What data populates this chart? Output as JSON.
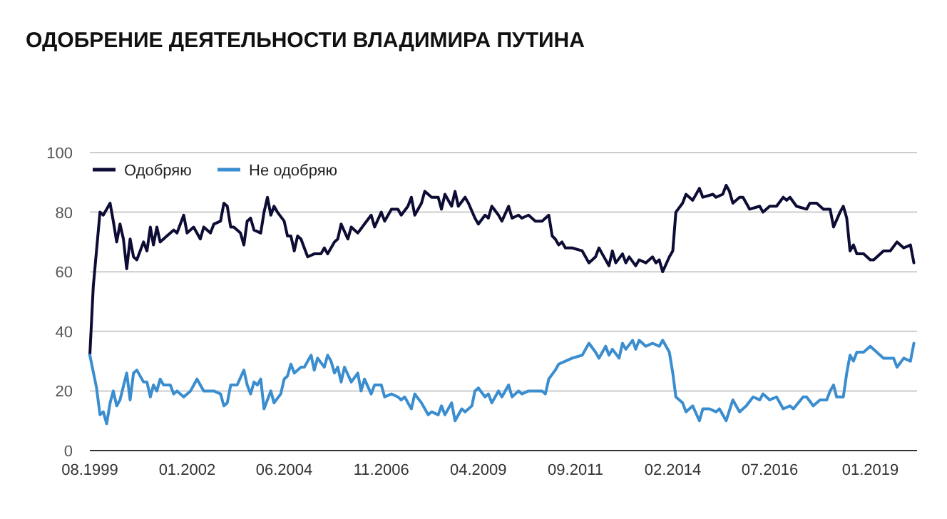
{
  "chart_data": {
    "type": "line",
    "title": "ОДОБРЕНИЕ ДЕЯТЕЛЬНОСТИ ВЛАДИМИРА ПУТИНА",
    "xlim": [
      "1999-08",
      "2020-03"
    ],
    "xticks": [
      {
        "value": "1999-08",
        "label": "08.1999"
      },
      {
        "value": "2002-01",
        "label": "01.2002"
      },
      {
        "value": "2004-06",
        "label": "06.2004"
      },
      {
        "value": "2006-11",
        "label": "11.2006"
      },
      {
        "value": "2009-04",
        "label": "04.2009"
      },
      {
        "value": "2011-09",
        "label": "09.2011"
      },
      {
        "value": "2014-02",
        "label": "02.2014"
      },
      {
        "value": "2016-07",
        "label": "07.2016"
      },
      {
        "value": "2019-01",
        "label": "01.2019"
      }
    ],
    "ylim": [
      0,
      100
    ],
    "yticks": [
      0,
      20,
      40,
      60,
      80,
      100
    ],
    "grid": "y",
    "legend": "top left",
    "marker": "none",
    "line_style": "solid",
    "series": [
      {
        "name": "Одобряю",
        "color": "#0c0c35",
        "x": [
          "1999-08",
          "1999-09",
          "1999-11",
          "1999-12",
          "2000-02",
          "2000-03",
          "2000-04",
          "2000-05",
          "2000-06",
          "2000-07",
          "2000-08",
          "2000-09",
          "2000-10",
          "2000-12",
          "2001-01",
          "2001-02",
          "2001-03",
          "2001-04",
          "2001-05",
          "2001-07",
          "2001-09",
          "2001-10",
          "2001-12",
          "2002-01",
          "2002-03",
          "2002-05",
          "2002-06",
          "2002-08",
          "2002-09",
          "2002-11",
          "2002-12",
          "2003-01",
          "2003-02",
          "2003-03",
          "2003-05",
          "2003-06",
          "2003-07",
          "2003-08",
          "2003-09",
          "2003-11",
          "2003-12",
          "2004-01",
          "2004-02",
          "2004-03",
          "2004-04",
          "2004-06",
          "2004-07",
          "2004-08",
          "2004-09",
          "2004-10",
          "2004-11",
          "2004-12",
          "2005-01",
          "2005-03",
          "2005-05",
          "2005-06",
          "2005-07",
          "2005-09",
          "2005-10",
          "2005-11",
          "2006-01",
          "2006-02",
          "2006-04",
          "2006-06",
          "2006-08",
          "2006-09",
          "2006-11",
          "2006-12",
          "2007-02",
          "2007-04",
          "2007-05",
          "2007-07",
          "2007-08",
          "2007-09",
          "2007-11",
          "2007-12",
          "2008-02",
          "2008-04",
          "2008-05",
          "2008-06",
          "2008-08",
          "2008-09",
          "2008-10",
          "2008-12",
          "2009-01",
          "2009-03",
          "2009-04",
          "2009-06",
          "2009-07",
          "2009-08",
          "2009-10",
          "2009-11",
          "2010-01",
          "2010-02",
          "2010-04",
          "2010-05",
          "2010-07",
          "2010-09",
          "2010-11",
          "2011-01",
          "2011-02",
          "2011-03",
          "2011-04",
          "2011-05",
          "2011-06",
          "2011-08",
          "2011-11",
          "2012-01",
          "2012-03",
          "2012-04",
          "2012-05",
          "2012-07",
          "2012-08",
          "2012-09",
          "2012-11",
          "2012-12",
          "2013-01",
          "2013-03",
          "2013-04",
          "2013-06",
          "2013-08",
          "2013-09",
          "2013-10",
          "2013-11",
          "2014-01",
          "2014-02",
          "2014-03",
          "2014-05",
          "2014-06",
          "2014-08",
          "2014-10",
          "2014-11",
          "2015-02",
          "2015-03",
          "2015-05",
          "2015-06",
          "2015-07",
          "2015-08",
          "2015-10",
          "2015-11",
          "2016-01",
          "2016-04",
          "2016-05",
          "2016-07",
          "2016-09",
          "2016-11",
          "2016-12",
          "2017-01",
          "2017-03",
          "2017-06",
          "2017-07",
          "2017-09",
          "2017-11",
          "2018-01",
          "2018-02",
          "2018-04",
          "2018-05",
          "2018-06",
          "2018-07",
          "2018-08",
          "2018-09",
          "2018-11",
          "2019-01",
          "2019-02",
          "2019-05",
          "2019-07",
          "2019-09",
          "2019-11",
          "2020-01",
          "2020-02"
        ],
        "values": [
          32,
          55,
          80,
          79,
          83,
          77,
          70,
          76,
          71,
          61,
          71,
          65,
          64,
          70,
          67,
          75,
          69,
          75,
          70,
          72,
          74,
          73,
          79,
          73,
          75,
          71,
          75,
          73,
          76,
          77,
          83,
          82,
          75,
          75,
          73,
          69,
          77,
          78,
          74,
          73,
          80,
          85,
          79,
          82,
          80,
          77,
          72,
          72,
          67,
          72,
          71,
          68,
          65,
          66,
          66,
          68,
          66,
          70,
          71,
          76,
          71,
          75,
          73,
          76,
          79,
          75,
          80,
          77,
          81,
          81,
          79,
          82,
          85,
          79,
          83,
          87,
          85,
          85,
          81,
          86,
          82,
          87,
          82,
          85,
          83,
          78,
          76,
          79,
          78,
          82,
          79,
          77,
          82,
          78,
          79,
          78,
          79,
          77,
          77,
          79,
          72,
          71,
          69,
          70,
          68,
          68,
          67,
          63,
          65,
          68,
          66,
          62,
          67,
          63,
          66,
          63,
          65,
          62,
          64,
          63,
          65,
          63,
          64,
          60,
          65,
          67,
          80,
          83,
          86,
          84,
          88,
          85,
          86,
          85,
          86,
          89,
          87,
          83,
          85,
          85,
          81,
          82,
          80,
          82,
          82,
          85,
          84,
          85,
          82,
          81,
          83,
          83,
          81,
          81,
          75,
          80,
          82,
          78,
          67,
          69,
          66,
          66,
          64,
          64,
          67,
          67,
          70,
          68,
          69,
          63
        ]
      },
      {
        "name": "Не одобряю",
        "color": "#3a8dcf",
        "x": [
          "1999-08",
          "1999-10",
          "1999-11",
          "1999-12",
          "2000-01",
          "2000-02",
          "2000-03",
          "2000-04",
          "2000-05",
          "2000-07",
          "2000-08",
          "2000-09",
          "2000-10",
          "2000-12",
          "2001-01",
          "2001-02",
          "2001-03",
          "2001-04",
          "2001-05",
          "2001-06",
          "2001-08",
          "2001-09",
          "2001-10",
          "2001-12",
          "2002-02",
          "2002-04",
          "2002-06",
          "2002-09",
          "2002-11",
          "2002-12",
          "2003-01",
          "2003-02",
          "2003-04",
          "2003-06",
          "2003-07",
          "2003-08",
          "2003-09",
          "2003-10",
          "2003-11",
          "2003-12",
          "2004-02",
          "2004-03",
          "2004-05",
          "2004-06",
          "2004-07",
          "2004-08",
          "2004-09",
          "2004-11",
          "2004-12",
          "2005-02",
          "2005-03",
          "2005-04",
          "2005-06",
          "2005-07",
          "2005-08",
          "2005-09",
          "2005-10",
          "2005-11",
          "2005-12",
          "2006-02",
          "2006-04",
          "2006-05",
          "2006-06",
          "2006-08",
          "2006-09",
          "2006-11",
          "2006-12",
          "2007-02",
          "2007-04",
          "2007-05",
          "2007-06",
          "2007-08",
          "2007-09",
          "2007-11",
          "2008-01",
          "2008-02",
          "2008-04",
          "2008-05",
          "2008-06",
          "2008-08",
          "2008-09",
          "2008-11",
          "2008-12",
          "2009-02",
          "2009-03",
          "2009-04",
          "2009-06",
          "2009-07",
          "2009-08",
          "2009-10",
          "2009-11",
          "2010-01",
          "2010-02",
          "2010-04",
          "2010-05",
          "2010-07",
          "2010-09",
          "2010-11",
          "2010-12",
          "2011-01",
          "2011-03",
          "2011-04",
          "2011-06",
          "2011-08",
          "2011-11",
          "2012-01",
          "2012-03",
          "2012-04",
          "2012-06",
          "2012-07",
          "2012-08",
          "2012-10",
          "2012-11",
          "2012-12",
          "2013-02",
          "2013-03",
          "2013-04",
          "2013-06",
          "2013-08",
          "2013-10",
          "2013-11",
          "2014-01",
          "2014-02",
          "2014-03",
          "2014-05",
          "2014-06",
          "2014-08",
          "2014-10",
          "2014-11",
          "2015-01",
          "2015-03",
          "2015-04",
          "2015-06",
          "2015-08",
          "2015-10",
          "2015-12",
          "2016-02",
          "2016-04",
          "2016-05",
          "2016-07",
          "2016-09",
          "2016-11",
          "2017-01",
          "2017-02",
          "2017-05",
          "2017-06",
          "2017-08",
          "2017-10",
          "2017-12",
          "2018-01",
          "2018-02",
          "2018-03",
          "2018-05",
          "2018-06",
          "2018-07",
          "2018-08",
          "2018-09",
          "2018-11",
          "2019-01",
          "2019-03",
          "2019-05",
          "2019-08",
          "2019-09",
          "2019-11",
          "2020-01",
          "2020-02"
        ],
        "values": [
          32,
          21,
          12,
          13,
          9,
          16,
          20,
          15,
          17,
          26,
          17,
          26,
          27,
          23,
          23,
          18,
          22,
          20,
          24,
          22,
          22,
          19,
          20,
          18,
          20,
          24,
          20,
          20,
          19,
          15,
          16,
          22,
          22,
          27,
          22,
          19,
          23,
          22,
          24,
          14,
          20,
          16,
          19,
          24,
          25,
          29,
          26,
          28,
          28,
          32,
          27,
          31,
          28,
          32,
          30,
          26,
          28,
          23,
          28,
          23,
          26,
          20,
          24,
          19,
          22,
          22,
          18,
          19,
          18,
          17,
          18,
          14,
          19,
          16,
          12,
          13,
          12,
          15,
          12,
          16,
          10,
          14,
          13,
          15,
          20,
          21,
          18,
          19,
          16,
          20,
          18,
          22,
          18,
          20,
          19,
          20,
          20,
          20,
          19,
          24,
          27,
          29,
          30,
          31,
          32,
          36,
          33,
          31,
          35,
          32,
          34,
          31,
          36,
          34,
          37,
          34,
          37,
          35,
          36,
          35,
          37,
          33,
          26,
          18,
          16,
          13,
          15,
          10,
          14,
          14,
          13,
          14,
          10,
          17,
          13,
          15,
          18,
          17,
          19,
          17,
          18,
          14,
          15,
          14,
          18,
          18,
          15,
          17,
          17,
          20,
          22,
          18,
          18,
          26,
          32,
          30,
          33,
          33,
          35,
          33,
          31,
          31,
          28,
          31,
          30,
          36
        ]
      }
    ]
  }
}
